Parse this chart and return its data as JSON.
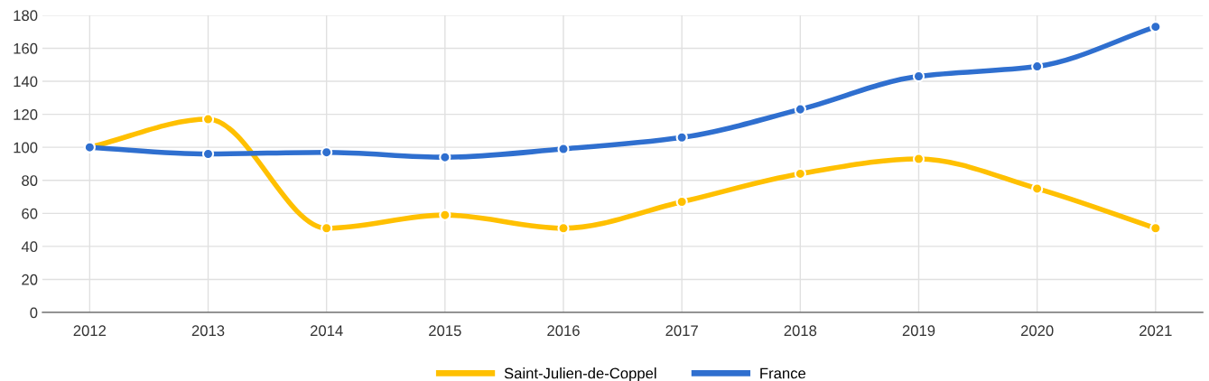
{
  "chart_data": {
    "type": "line",
    "categories": [
      "2012",
      "2013",
      "2014",
      "2015",
      "2016",
      "2017",
      "2018",
      "2019",
      "2020",
      "2021"
    ],
    "series": [
      {
        "name": "Saint-Julien-de-Coppel",
        "color": "#ffc000",
        "values": [
          100,
          117,
          51,
          59,
          51,
          67,
          84,
          93,
          75,
          51
        ]
      },
      {
        "name": "France",
        "color": "#2f6fcf",
        "values": [
          100,
          96,
          97,
          94,
          99,
          106,
          123,
          143,
          149,
          173
        ]
      }
    ],
    "ylim": [
      0,
      180
    ],
    "yticks": [
      0,
      20,
      40,
      60,
      80,
      100,
      120,
      140,
      160,
      180
    ],
    "grid": true,
    "legend": "bottom",
    "marker": "circle",
    "line_style": "solid"
  }
}
